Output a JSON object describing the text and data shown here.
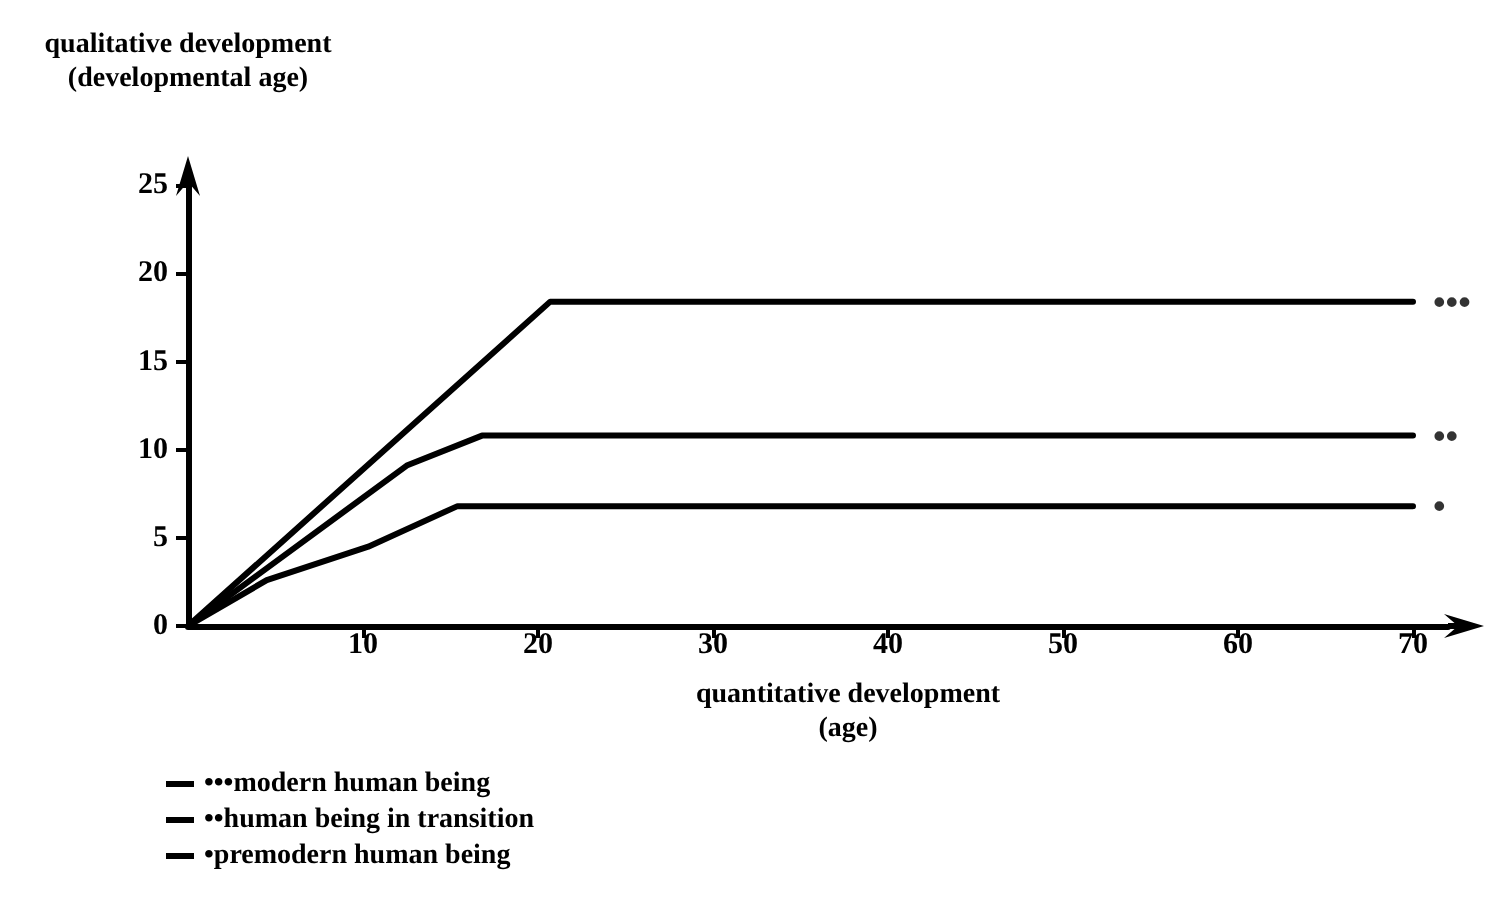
{
  "chart_data": {
    "type": "line",
    "xlabel": "quantitative development\n(age)",
    "ylabel": "qualitative development\n(developmental age)",
    "xlim": [
      0,
      72
    ],
    "xticks": [
      10,
      20,
      30,
      40,
      50,
      60,
      70
    ],
    "ylim": [
      0,
      25.3
    ],
    "yticks": [
      0,
      5,
      10,
      15,
      20,
      25
    ],
    "series": [
      {
        "name": "•••modern human being",
        "color": "#000000",
        "x": [
          0,
          20.7,
          70
        ],
        "values": [
          0,
          18.4,
          18.4
        ]
      },
      {
        "name": "••human being in transition",
        "color": "#000000",
        "x": [
          0,
          12.5,
          16.8,
          70
        ],
        "values": [
          0,
          9.1,
          10.8,
          10.8
        ]
      },
      {
        "name": "•premodern human being",
        "color": "#000000",
        "x": [
          0,
          4.5,
          10.3,
          15.4,
          70
        ],
        "values": [
          0,
          2.6,
          4.5,
          6.8,
          6.8
        ]
      }
    ],
    "annotations": [
      "•••",
      "••",
      "•"
    ],
    "legend": "bottom left",
    "grid": false,
    "marker": "none",
    "line_style": "solid"
  }
}
